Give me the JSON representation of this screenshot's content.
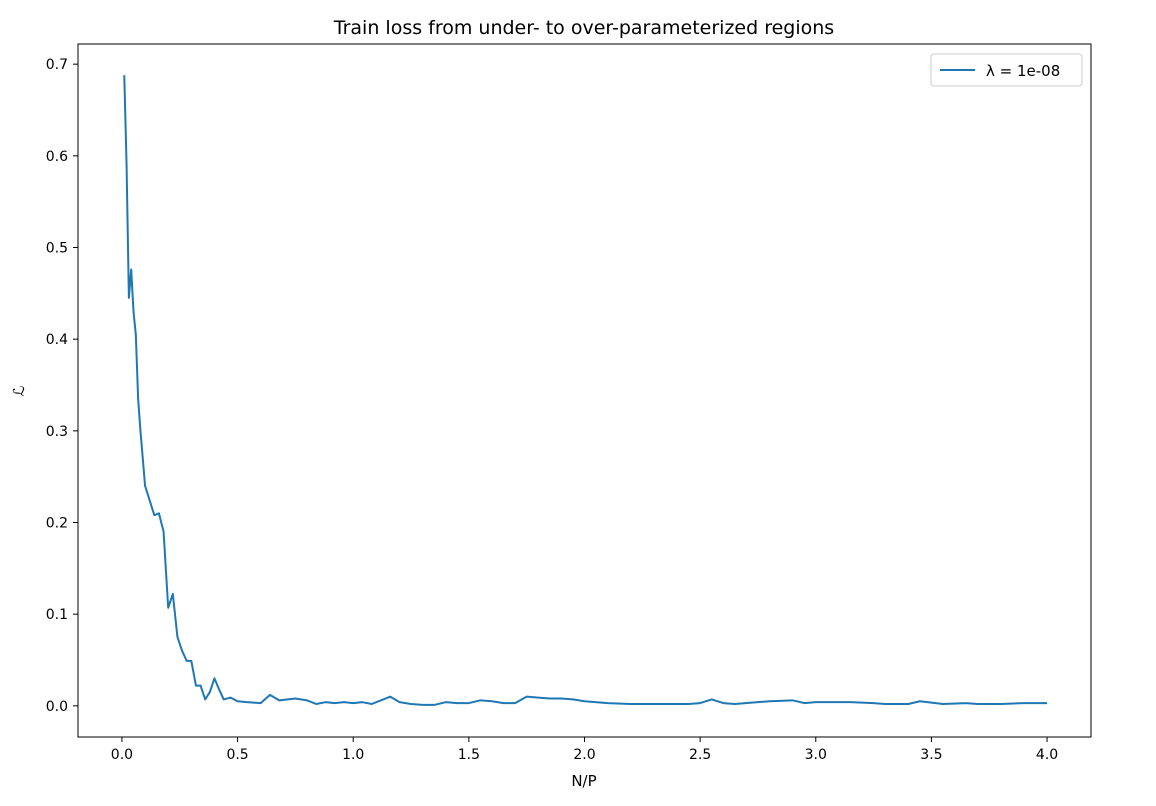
{
  "chart_data": {
    "type": "line",
    "title": "Train loss from under- to over-parameterized regions",
    "xlabel": "N/P",
    "ylabel": "ℒ",
    "xlim": [
      -0.19,
      4.19
    ],
    "ylim": [
      -0.034,
      0.722
    ],
    "xticks": [
      0.0,
      0.5,
      1.0,
      1.5,
      2.0,
      2.5,
      3.0,
      3.5,
      4.0
    ],
    "xtick_labels": [
      "0.0",
      "0.5",
      "1.0",
      "1.5",
      "2.0",
      "2.5",
      "3.0",
      "3.5",
      "4.0"
    ],
    "yticks": [
      0.0,
      0.1,
      0.2,
      0.3,
      0.4,
      0.5,
      0.6,
      0.7
    ],
    "ytick_labels": [
      "0.0",
      "0.1",
      "0.2",
      "0.3",
      "0.4",
      "0.5",
      "0.6",
      "0.7"
    ],
    "grid": false,
    "legend_position": "top-right",
    "series": [
      {
        "name": "λ = 1e-08",
        "color": "#1f77b4",
        "x": [
          0.01,
          0.02,
          0.03,
          0.04,
          0.05,
          0.06,
          0.07,
          0.08,
          0.1,
          0.12,
          0.14,
          0.16,
          0.18,
          0.2,
          0.22,
          0.24,
          0.26,
          0.28,
          0.3,
          0.32,
          0.34,
          0.36,
          0.38,
          0.4,
          0.42,
          0.44,
          0.47,
          0.5,
          0.54,
          0.6,
          0.64,
          0.68,
          0.75,
          0.8,
          0.84,
          0.88,
          0.92,
          0.96,
          1.0,
          1.04,
          1.08,
          1.12,
          1.16,
          1.2,
          1.25,
          1.3,
          1.35,
          1.4,
          1.45,
          1.5,
          1.55,
          1.6,
          1.65,
          1.7,
          1.75,
          1.8,
          1.85,
          1.9,
          1.95,
          2.0,
          2.1,
          2.2,
          2.25,
          2.3,
          2.4,
          2.45,
          2.5,
          2.55,
          2.6,
          2.65,
          2.75,
          2.8,
          2.9,
          2.95,
          3.0,
          3.05,
          3.15,
          3.25,
          3.3,
          3.4,
          3.45,
          3.55,
          3.65,
          3.7,
          3.8,
          3.9,
          4.0
        ],
        "values": [
          0.688,
          0.59,
          0.445,
          0.476,
          0.43,
          0.405,
          0.335,
          0.3,
          0.24,
          0.224,
          0.208,
          0.21,
          0.19,
          0.107,
          0.122,
          0.075,
          0.06,
          0.049,
          0.049,
          0.022,
          0.022,
          0.007,
          0.015,
          0.03,
          0.018,
          0.007,
          0.009,
          0.005,
          0.004,
          0.003,
          0.012,
          0.006,
          0.008,
          0.006,
          0.002,
          0.004,
          0.003,
          0.004,
          0.003,
          0.004,
          0.002,
          0.006,
          0.01,
          0.004,
          0.002,
          0.001,
          0.001,
          0.004,
          0.003,
          0.003,
          0.006,
          0.005,
          0.003,
          0.003,
          0.01,
          0.009,
          0.008,
          0.008,
          0.007,
          0.005,
          0.003,
          0.002,
          0.002,
          0.002,
          0.002,
          0.002,
          0.003,
          0.007,
          0.003,
          0.002,
          0.004,
          0.005,
          0.006,
          0.003,
          0.004,
          0.004,
          0.004,
          0.003,
          0.002,
          0.002,
          0.005,
          0.002,
          0.003,
          0.002,
          0.002,
          0.003,
          0.003
        ]
      }
    ]
  }
}
